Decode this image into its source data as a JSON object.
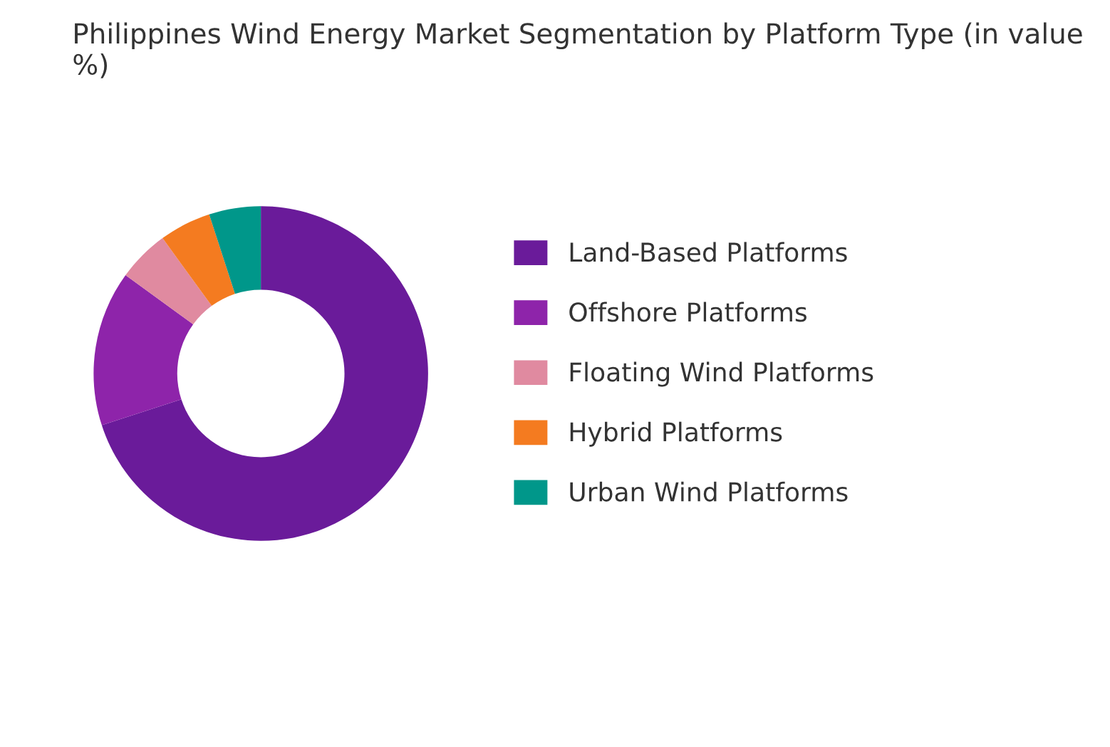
{
  "chart_data": {
    "type": "donut",
    "title": "Philippines Wind Energy Market Segmentation by Platform Type (in value %)",
    "categories": [
      "Land-Based Platforms",
      "Offshore Platforms",
      "Floating Wind Platforms",
      "Hybrid Platforms",
      "Urban Wind Platforms"
    ],
    "values": [
      70,
      15,
      5,
      5,
      5
    ],
    "colors": [
      "#6a1b9a",
      "#8e24aa",
      "#e08aa0",
      "#f47b20",
      "#00978a"
    ],
    "legend": "right"
  }
}
